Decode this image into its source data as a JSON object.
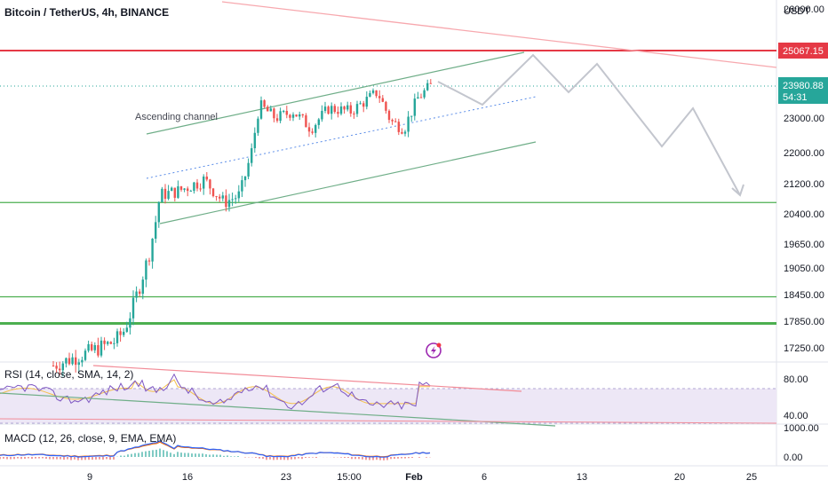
{
  "chart_title": "Bitcoin / TetherUS, 4h, BINANCE",
  "currency": "USDT",
  "annotation": "Ascending channel",
  "colors": {
    "up": "#26a69a",
    "down": "#ef5350",
    "resistance": "#e53945",
    "support": "#4caf50",
    "projection": "#c3c6ce",
    "rsi_line": "#7e57c2",
    "rsi_ma": "#f5c04c",
    "rsi_band": "#ede7f6",
    "macd_line": "#2962ff",
    "signal_line": "#ff6d00",
    "price_tag": "#26a69a",
    "resistance_tag": "#e53945",
    "lightning": "#c2185b"
  },
  "icons": {
    "lightning": "lightning-bolt-icon"
  },
  "price_tag": {
    "price": "23980.88",
    "countdown": "54:31"
  },
  "resistance_tag": "25067.15",
  "chart_data": [
    {
      "type": "candlestick",
      "title": "Bitcoin / TetherUS, 4h, BINANCE",
      "y_tick_labels": [
        "26000.00",
        "25067.15",
        "23980.88",
        "23000.00",
        "22000.00",
        "21200.00",
        "20400.00",
        "19650.00",
        "19050.00",
        "18450.00",
        "17850.00",
        "17250.00"
      ],
      "y_ticks": [
        26000,
        23000,
        22000,
        21200,
        20400,
        19650,
        19050,
        18450,
        17850,
        17250
      ],
      "ylim": [
        16900,
        26300
      ],
      "x_tick_labels": [
        "9",
        "16",
        "23",
        "15:00",
        "Feb",
        "6",
        "13",
        "20",
        "25"
      ],
      "horizontal_levels": [
        {
          "name": "resistance",
          "value": 25067.15
        },
        {
          "name": "support",
          "value": 20700
        },
        {
          "name": "support",
          "value": 18400
        },
        {
          "name": "support",
          "value": 17800
        }
      ],
      "last_price": 23980.88
    },
    {
      "type": "line",
      "title": "RSI (14, close, SMA, 14, 2)",
      "y_tick_labels": [
        "80.00",
        "40.00"
      ],
      "y_ticks": [
        80,
        40
      ],
      "ylim": [
        25,
        100
      ]
    },
    {
      "type": "bar",
      "title": "MACD (12, 26, close, 9, EMA, EMA)",
      "y_tick_labels": [
        "1000.00",
        "0.00"
      ],
      "y_ticks": [
        1000,
        0
      ],
      "ylim": [
        -300,
        1200
      ]
    }
  ]
}
